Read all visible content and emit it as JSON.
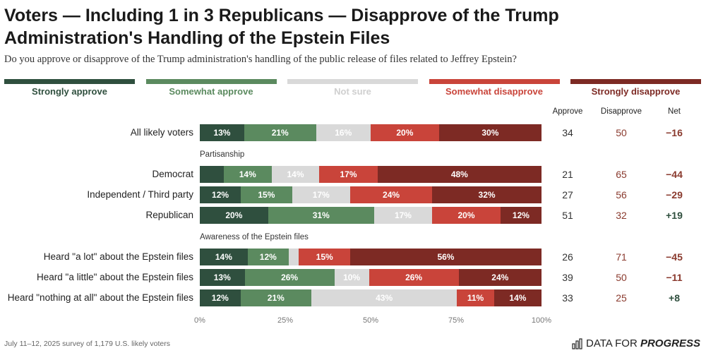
{
  "title": "Voters — Including 1 in 3 Republicans — Disapprove of the Trump Administration's Handling of the Epstein Files",
  "subtitle": "Do you approve or disapprove of the Trump administration's handling of the public release of files related to Jeffrey Epstein?",
  "footer": "July 11–12, 2025 survey of 1,179 U.S. likely voters",
  "logo": {
    "icon": "bar-chart-icon",
    "prefix": "DATA FOR",
    "suffix": "PROGRESS"
  },
  "column_headers": {
    "approve": "Approve",
    "disapprove": "Disapprove",
    "net": "Net"
  },
  "colors": {
    "strongly_approve": "#2f4f3e",
    "somewhat_approve": "#5b8a5f",
    "not_sure": "#d9d9d9",
    "somewhat_disapprove": "#c9443a",
    "strongly_disapprove": "#7d2a24",
    "approve_text": "#2f4f3e",
    "disapprove_text": "#8a3a2e",
    "not_sure_text": "#cfcfcf"
  },
  "chart_data": {
    "type": "stacked-bar-horizontal",
    "categories_order": [
      "Strongly approve",
      "Somewhat approve",
      "Not sure",
      "Somewhat disapprove",
      "Strongly disapprove"
    ],
    "legend": [
      "Strongly approve",
      "Somewhat approve",
      "Not sure",
      "Somewhat disapprove",
      "Strongly disapprove"
    ],
    "xlim": [
      0,
      100
    ],
    "x_ticks": [
      "0%",
      "25%",
      "50%",
      "75%",
      "100%"
    ],
    "sections": [
      "",
      "Partisanship",
      "Awareness of the Epstein files"
    ],
    "rows": [
      {
        "label": "All likely voters",
        "section": 0,
        "values": [
          13,
          21,
          16,
          20,
          30
        ],
        "labels": [
          "13%",
          "21%",
          "16%",
          "20%",
          "30%"
        ],
        "approve": "34",
        "disapprove": "50",
        "net": "−16"
      },
      {
        "label": "Democrat",
        "section": 1,
        "values": [
          7,
          14,
          14,
          17,
          48
        ],
        "labels": [
          "",
          "14%",
          "14%",
          "17%",
          "48%"
        ],
        "approve": "21",
        "disapprove": "65",
        "net": "−44"
      },
      {
        "label": "Independent / Third party",
        "section": 1,
        "values": [
          12,
          15,
          17,
          24,
          32
        ],
        "labels": [
          "12%",
          "15%",
          "17%",
          "24%",
          "32%"
        ],
        "approve": "27",
        "disapprove": "56",
        "net": "−29"
      },
      {
        "label": "Republican",
        "section": 1,
        "values": [
          20,
          31,
          17,
          20,
          12
        ],
        "labels": [
          "20%",
          "31%",
          "17%",
          "20%",
          "12%"
        ],
        "approve": "51",
        "disapprove": "32",
        "net": "+19"
      },
      {
        "label": "Heard \"a lot\" about the Epstein files",
        "section": 2,
        "values": [
          14,
          12,
          3,
          15,
          56
        ],
        "labels": [
          "14%",
          "12%",
          "",
          "15%",
          "56%"
        ],
        "approve": "26",
        "disapprove": "71",
        "net": "−45"
      },
      {
        "label": "Heard \"a little\" about the Epstein files",
        "section": 2,
        "values": [
          13,
          26,
          10,
          26,
          24
        ],
        "labels": [
          "13%",
          "26%",
          "10%",
          "26%",
          "24%"
        ],
        "approve": "39",
        "disapprove": "50",
        "net": "−11"
      },
      {
        "label": "Heard \"nothing at all\" about the Epstein files",
        "section": 2,
        "values": [
          12,
          21,
          43,
          11,
          14
        ],
        "labels": [
          "12%",
          "21%",
          "43%",
          "11%",
          "14%"
        ],
        "approve": "33",
        "disapprove": "25",
        "net": "+8"
      }
    ]
  }
}
